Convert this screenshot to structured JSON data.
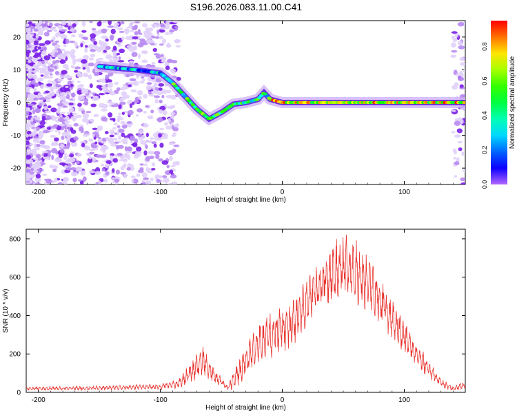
{
  "title": "S196.2026.083.11.00.C41",
  "chart_data": [
    {
      "type": "heatmap",
      "name": "spectrogram",
      "xlabel": "Height of straight line (km)",
      "ylabel": "Frequency (Hz)",
      "xlim": [
        -210,
        150
      ],
      "ylim": [
        -25,
        25
      ],
      "xticks": [
        -200,
        -100,
        0,
        100
      ],
      "yticks": [
        -20,
        -10,
        0,
        10,
        20
      ],
      "ridge_frequency_hz": {
        "x": [
          -150,
          -120,
          -100,
          -90,
          -80,
          -70,
          -60,
          -50,
          -40,
          -30,
          -20,
          -15,
          -10,
          0,
          50,
          100,
          150
        ],
        "y": [
          11,
          10,
          9,
          6,
          2,
          -2,
          -5,
          -3,
          -0.5,
          0,
          1,
          3,
          1,
          0,
          0,
          0,
          0
        ]
      },
      "colorbar": {
        "label": "Normalized spectral amplitude",
        "range": [
          0.0,
          0.95
        ],
        "ticks": [
          0.0,
          0.2,
          0.4,
          0.6,
          0.8
        ]
      }
    },
    {
      "type": "line",
      "name": "snr",
      "xlabel": "Height of straight line (km)",
      "ylabel": "SNR (10 * v/v)",
      "xlim": [
        -210,
        150
      ],
      "ylim": [
        0,
        850
      ],
      "xticks": [
        -200,
        -100,
        0,
        100
      ],
      "yticks": [
        0,
        200,
        400,
        600,
        800
      ],
      "color": "#e8332e",
      "envelope": {
        "x": [
          -210,
          -150,
          -100,
          -85,
          -75,
          -65,
          -55,
          -45,
          -40,
          -30,
          -20,
          -10,
          0,
          10,
          20,
          30,
          40,
          50,
          60,
          70,
          80,
          90,
          100,
          110,
          120,
          130,
          140,
          150
        ],
        "mean": [
          20,
          22,
          30,
          45,
          100,
          160,
          80,
          25,
          60,
          160,
          250,
          300,
          330,
          380,
          460,
          550,
          620,
          650,
          630,
          580,
          480,
          380,
          290,
          200,
          120,
          50,
          20,
          40
        ],
        "amplitude": [
          10,
          12,
          15,
          25,
          60,
          90,
          40,
          15,
          60,
          100,
          120,
          130,
          140,
          140,
          130,
          150,
          170,
          180,
          180,
          160,
          130,
          110,
          90,
          70,
          50,
          25,
          15,
          20
        ]
      }
    }
  ]
}
